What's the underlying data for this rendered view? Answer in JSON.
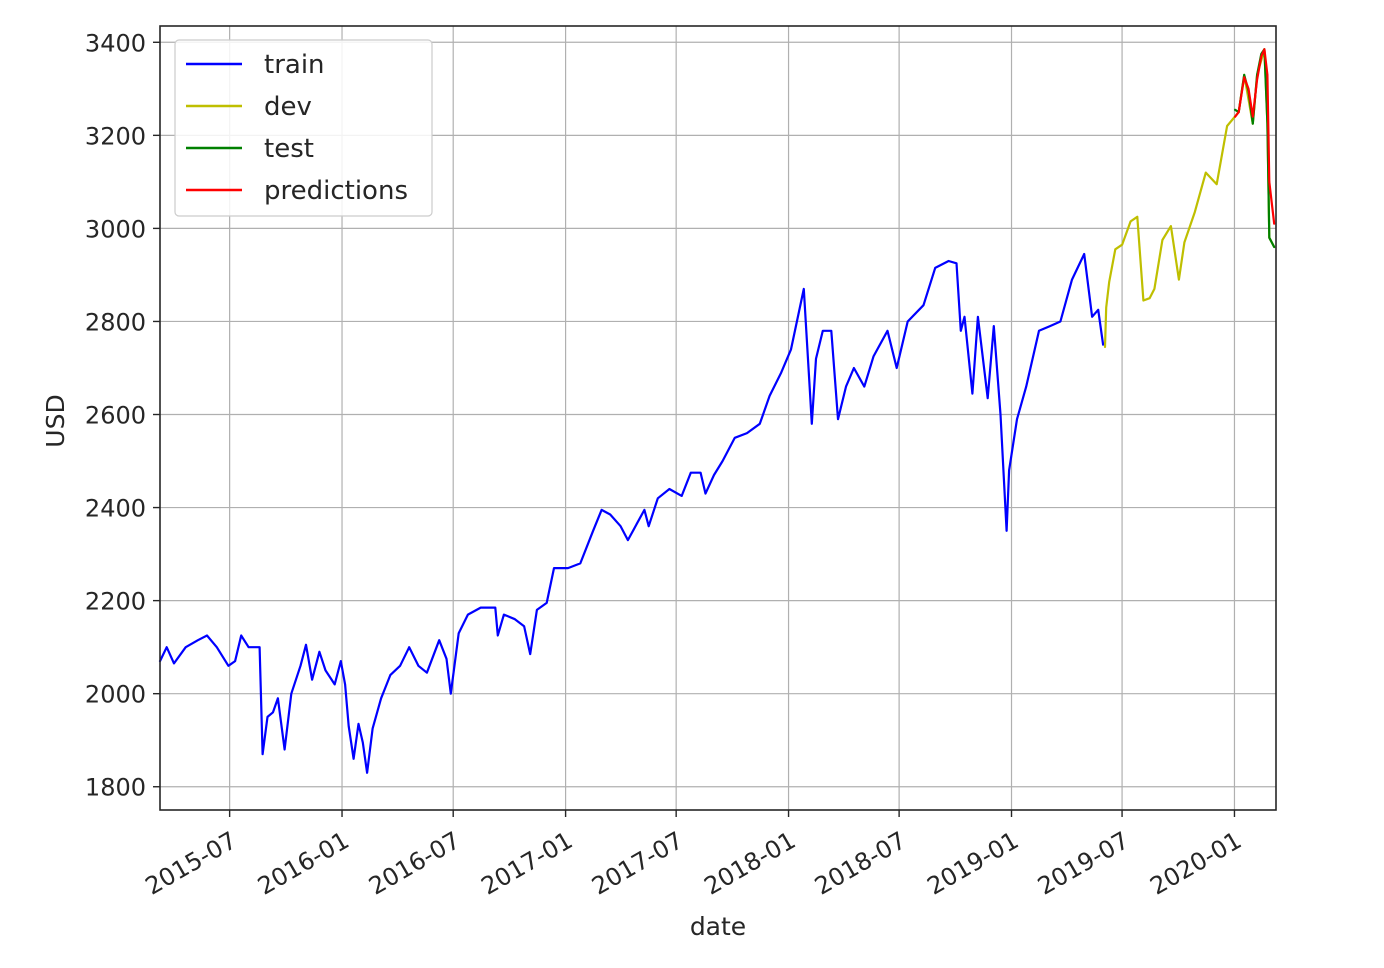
{
  "chart_data": {
    "type": "line",
    "xlabel": "date",
    "ylabel": "USD",
    "x_tick_labels": [
      "2015-07",
      "2016-01",
      "2016-07",
      "2017-01",
      "2017-07",
      "2018-01",
      "2018-07",
      "2019-01",
      "2019-07",
      "2020-01"
    ],
    "x_range": [
      "2015-03-09",
      "2020-03-09"
    ],
    "y_ticks": [
      1800,
      2000,
      2200,
      2400,
      2600,
      2800,
      3000,
      3200,
      3400
    ],
    "ylim": [
      1750,
      3435
    ],
    "grid": true,
    "legend_position": "upper-left",
    "series": [
      {
        "name": "train",
        "color": "#0000ff",
        "points": [
          [
            "2015-03-09",
            2070
          ],
          [
            "2015-03-20",
            2100
          ],
          [
            "2015-04-01",
            2065
          ],
          [
            "2015-04-20",
            2100
          ],
          [
            "2015-05-10",
            2115
          ],
          [
            "2015-05-25",
            2125
          ],
          [
            "2015-06-10",
            2100
          ],
          [
            "2015-06-29",
            2060
          ],
          [
            "2015-07-10",
            2070
          ],
          [
            "2015-07-20",
            2125
          ],
          [
            "2015-08-01",
            2100
          ],
          [
            "2015-08-19",
            2100
          ],
          [
            "2015-08-24",
            1870
          ],
          [
            "2015-09-01",
            1950
          ],
          [
            "2015-09-10",
            1960
          ],
          [
            "2015-09-18",
            1990
          ],
          [
            "2015-09-29",
            1880
          ],
          [
            "2015-10-10",
            2000
          ],
          [
            "2015-10-25",
            2060
          ],
          [
            "2015-11-03",
            2105
          ],
          [
            "2015-11-13",
            2030
          ],
          [
            "2015-11-25",
            2090
          ],
          [
            "2015-12-05",
            2050
          ],
          [
            "2015-12-20",
            2020
          ],
          [
            "2015-12-30",
            2070
          ],
          [
            "2016-01-06",
            2020
          ],
          [
            "2016-01-12",
            1930
          ],
          [
            "2016-01-20",
            1860
          ],
          [
            "2016-01-28",
            1935
          ],
          [
            "2016-02-04",
            1895
          ],
          [
            "2016-02-11",
            1830
          ],
          [
            "2016-02-20",
            1925
          ],
          [
            "2016-03-05",
            1990
          ],
          [
            "2016-03-20",
            2040
          ],
          [
            "2016-04-05",
            2060
          ],
          [
            "2016-04-20",
            2100
          ],
          [
            "2016-05-05",
            2060
          ],
          [
            "2016-05-19",
            2045
          ],
          [
            "2016-06-08",
            2115
          ],
          [
            "2016-06-20",
            2075
          ],
          [
            "2016-06-27",
            2000
          ],
          [
            "2016-07-10",
            2130
          ],
          [
            "2016-07-25",
            2170
          ],
          [
            "2016-08-15",
            2185
          ],
          [
            "2016-09-08",
            2185
          ],
          [
            "2016-09-12",
            2125
          ],
          [
            "2016-09-22",
            2170
          ],
          [
            "2016-10-10",
            2160
          ],
          [
            "2016-10-25",
            2145
          ],
          [
            "2016-11-04",
            2085
          ],
          [
            "2016-11-15",
            2180
          ],
          [
            "2016-12-01",
            2195
          ],
          [
            "2016-12-13",
            2270
          ],
          [
            "2017-01-05",
            2270
          ],
          [
            "2017-01-25",
            2280
          ],
          [
            "2017-02-15",
            2350
          ],
          [
            "2017-03-01",
            2395
          ],
          [
            "2017-03-15",
            2385
          ],
          [
            "2017-04-01",
            2360
          ],
          [
            "2017-04-13",
            2330
          ],
          [
            "2017-05-10",
            2395
          ],
          [
            "2017-05-17",
            2360
          ],
          [
            "2017-06-01",
            2420
          ],
          [
            "2017-06-20",
            2440
          ],
          [
            "2017-07-10",
            2425
          ],
          [
            "2017-07-25",
            2475
          ],
          [
            "2017-08-10",
            2475
          ],
          [
            "2017-08-18",
            2430
          ],
          [
            "2017-09-01",
            2470
          ],
          [
            "2017-09-15",
            2500
          ],
          [
            "2017-10-05",
            2550
          ],
          [
            "2017-10-25",
            2560
          ],
          [
            "2017-11-15",
            2580
          ],
          [
            "2017-12-01",
            2640
          ],
          [
            "2017-12-20",
            2690
          ],
          [
            "2018-01-05",
            2740
          ],
          [
            "2018-01-26",
            2870
          ],
          [
            "2018-02-05",
            2650
          ],
          [
            "2018-02-08",
            2580
          ],
          [
            "2018-02-15",
            2720
          ],
          [
            "2018-02-26",
            2780
          ],
          [
            "2018-03-12",
            2780
          ],
          [
            "2018-03-23",
            2590
          ],
          [
            "2018-04-05",
            2660
          ],
          [
            "2018-04-18",
            2700
          ],
          [
            "2018-05-05",
            2660
          ],
          [
            "2018-05-20",
            2725
          ],
          [
            "2018-06-12",
            2780
          ],
          [
            "2018-06-27",
            2700
          ],
          [
            "2018-07-15",
            2800
          ],
          [
            "2018-08-10",
            2835
          ],
          [
            "2018-08-29",
            2915
          ],
          [
            "2018-09-20",
            2930
          ],
          [
            "2018-10-03",
            2925
          ],
          [
            "2018-10-10",
            2780
          ],
          [
            "2018-10-16",
            2810
          ],
          [
            "2018-10-29",
            2645
          ],
          [
            "2018-11-07",
            2810
          ],
          [
            "2018-11-23",
            2635
          ],
          [
            "2018-12-03",
            2790
          ],
          [
            "2018-12-14",
            2600
          ],
          [
            "2018-12-24",
            2350
          ],
          [
            "2018-12-28",
            2480
          ],
          [
            "2019-01-10",
            2590
          ],
          [
            "2019-01-25",
            2660
          ],
          [
            "2019-02-15",
            2780
          ],
          [
            "2019-03-05",
            2790
          ],
          [
            "2019-03-22",
            2800
          ],
          [
            "2019-04-10",
            2890
          ],
          [
            "2019-04-30",
            2945
          ],
          [
            "2019-05-13",
            2810
          ],
          [
            "2019-05-23",
            2825
          ],
          [
            "2019-05-31",
            2750
          ]
        ]
      },
      {
        "name": "dev",
        "color": "#bfbf00",
        "points": [
          [
            "2019-06-03",
            2745
          ],
          [
            "2019-06-05",
            2830
          ],
          [
            "2019-06-10",
            2885
          ],
          [
            "2019-06-20",
            2955
          ],
          [
            "2019-07-01",
            2965
          ],
          [
            "2019-07-15",
            3015
          ],
          [
            "2019-07-26",
            3025
          ],
          [
            "2019-08-05",
            2845
          ],
          [
            "2019-08-15",
            2850
          ],
          [
            "2019-08-23",
            2870
          ],
          [
            "2019-09-05",
            2975
          ],
          [
            "2019-09-19",
            3005
          ],
          [
            "2019-10-02",
            2890
          ],
          [
            "2019-10-11",
            2970
          ],
          [
            "2019-10-28",
            3035
          ],
          [
            "2019-11-15",
            3120
          ],
          [
            "2019-12-03",
            3095
          ],
          [
            "2019-12-20",
            3220
          ],
          [
            "2020-01-08",
            3250
          ],
          [
            "2020-01-17",
            3330
          ],
          [
            "2020-01-31",
            3225
          ],
          [
            "2020-02-07",
            3330
          ],
          [
            "2020-02-19",
            3385
          ],
          [
            "2020-02-24",
            3225
          ],
          [
            "2020-02-27",
            2980
          ],
          [
            "2020-03-06",
            2960
          ]
        ]
      },
      {
        "name": "test",
        "color": "#008000",
        "points": [
          [
            "2020-01-02",
            3255
          ],
          [
            "2020-01-08",
            3250
          ],
          [
            "2020-01-17",
            3330
          ],
          [
            "2020-01-24",
            3295
          ],
          [
            "2020-01-31",
            3225
          ],
          [
            "2020-02-07",
            3330
          ],
          [
            "2020-02-14",
            3375
          ],
          [
            "2020-02-19",
            3385
          ],
          [
            "2020-02-24",
            3225
          ],
          [
            "2020-02-27",
            2980
          ],
          [
            "2020-03-06",
            2960
          ]
        ]
      },
      {
        "name": "predictions",
        "color": "#ff0000",
        "points": [
          [
            "2020-01-02",
            3240
          ],
          [
            "2020-01-08",
            3250
          ],
          [
            "2020-01-17",
            3325
          ],
          [
            "2020-01-24",
            3300
          ],
          [
            "2020-01-31",
            3240
          ],
          [
            "2020-02-07",
            3320
          ],
          [
            "2020-02-14",
            3370
          ],
          [
            "2020-02-19",
            3385
          ],
          [
            "2020-02-24",
            3330
          ],
          [
            "2020-02-27",
            3100
          ],
          [
            "2020-03-06",
            3010
          ]
        ]
      }
    ]
  }
}
